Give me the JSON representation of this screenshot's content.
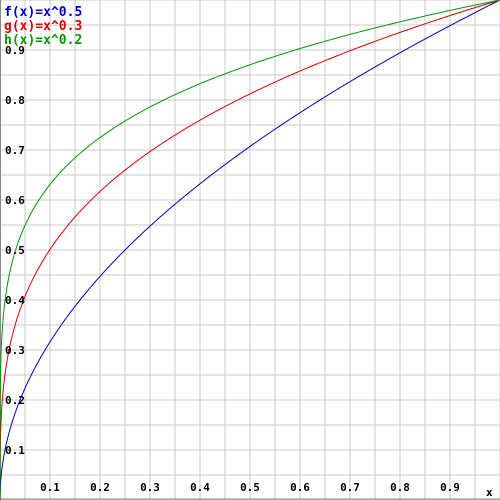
{
  "chart_data": {
    "type": "line",
    "xlabel": "x",
    "xlim": [
      0,
      1
    ],
    "ylim": [
      0,
      1
    ],
    "grid": true,
    "legend_position": "top-left",
    "x_ticks": [
      "0.1",
      "0.2",
      "0.3",
      "0.4",
      "0.5",
      "0.6",
      "0.7",
      "0.8",
      "0.9"
    ],
    "y_ticks": [
      "0.1",
      "0.2",
      "0.3",
      "0.4",
      "0.5",
      "0.6",
      "0.7",
      "0.8",
      "0.9"
    ],
    "series": [
      {
        "name": "f(x)=x^0.5",
        "exponent": 0.5,
        "color": "#0000cc"
      },
      {
        "name": "g(x)=x^0.3",
        "exponent": 0.3,
        "color": "#dd0000"
      },
      {
        "name": "h(x)=x^0.2",
        "exponent": 0.2,
        "color": "#009900"
      }
    ]
  }
}
